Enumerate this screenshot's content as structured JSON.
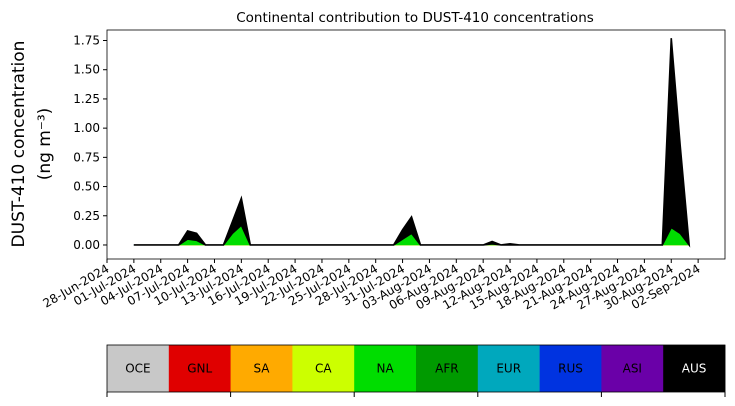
{
  "chart_data": {
    "type": "area",
    "title": "Continental contribution to DUST-410 concentrations",
    "ylabel_lines": [
      "DUST-410 concentration",
      "(ng m⁻³)"
    ],
    "x": [
      "2024-07-01",
      "2024-07-06",
      "2024-07-07",
      "2024-07-08",
      "2024-07-09",
      "2024-07-11",
      "2024-07-12",
      "2024-07-13",
      "2024-07-14",
      "2024-07-30",
      "2024-07-31",
      "2024-08-01",
      "2024-08-02",
      "2024-08-09",
      "2024-08-10",
      "2024-08-11",
      "2024-08-12",
      "2024-08-13",
      "2024-08-29",
      "2024-08-30",
      "2024-08-31",
      "2024-09-01"
    ],
    "series": [
      {
        "name": "OCE",
        "color": "#c8c8c8",
        "values": [
          0,
          0,
          0,
          0,
          0,
          0,
          0,
          0,
          0,
          0,
          0,
          0,
          0,
          0,
          0,
          0,
          0,
          0,
          0,
          0,
          0,
          0
        ]
      },
      {
        "name": "GNL",
        "color": "#e00000",
        "values": [
          0,
          0,
          0,
          0,
          0,
          0,
          0,
          0,
          0,
          0,
          0,
          0,
          0,
          0,
          0,
          0,
          0,
          0,
          0,
          0,
          0,
          0
        ]
      },
      {
        "name": "SA",
        "color": "#ffaa00",
        "values": [
          0,
          0,
          0,
          0,
          0,
          0,
          0,
          0,
          0,
          0,
          0,
          0,
          0,
          0,
          0,
          0,
          0,
          0,
          0,
          0,
          0,
          0
        ]
      },
      {
        "name": "CA",
        "color": "#ccff00",
        "values": [
          0,
          0,
          0,
          0,
          0,
          0,
          0,
          0,
          0,
          0,
          0,
          0,
          0,
          0,
          0,
          0,
          0,
          0,
          0,
          0,
          0,
          0
        ]
      },
      {
        "name": "NA",
        "color": "#00dd00",
        "values": [
          0,
          0,
          0.05,
          0.04,
          0,
          0,
          0.1,
          0.17,
          0,
          0,
          0.05,
          0.1,
          0,
          0,
          0.01,
          0,
          0,
          0,
          0,
          0.15,
          0.1,
          0
        ]
      },
      {
        "name": "AFR",
        "color": "#009a00",
        "values": [
          0,
          0,
          0,
          0,
          0,
          0,
          0,
          0,
          0,
          0,
          0,
          0,
          0,
          0,
          0,
          0,
          0,
          0,
          0,
          0,
          0,
          0
        ]
      },
      {
        "name": "EUR",
        "color": "#00a8bd",
        "values": [
          0,
          0,
          0,
          0,
          0,
          0,
          0,
          0,
          0,
          0,
          0,
          0,
          0,
          0,
          0,
          0,
          0,
          0,
          0,
          0,
          0,
          0
        ]
      },
      {
        "name": "RUS",
        "color": "#0033e0",
        "values": [
          0,
          0,
          0,
          0,
          0,
          0,
          0,
          0,
          0,
          0,
          0,
          0,
          0,
          0,
          0,
          0,
          0,
          0,
          0,
          0,
          0,
          0
        ]
      },
      {
        "name": "ASI",
        "color": "#6a00a8",
        "values": [
          0,
          0,
          0,
          0,
          0,
          0,
          0,
          0,
          0,
          0,
          0,
          0,
          0,
          0,
          0,
          0,
          0,
          0,
          0,
          0,
          0,
          0
        ]
      },
      {
        "name": "AUS",
        "color": "#000000",
        "values": [
          0,
          0,
          0.07,
          0.06,
          0,
          0,
          0.1,
          0.23,
          0,
          0,
          0.08,
          0.14,
          0,
          0,
          0.02,
          0,
          0.01,
          0,
          0,
          1.62,
          0.75,
          0
        ]
      }
    ],
    "xlim": [
      "2024-06-28",
      "2024-09-05"
    ],
    "xticks": [
      {
        "value": "2024-06-28",
        "label": "28-Jun-2024"
      },
      {
        "value": "2024-07-01",
        "label": "01-Jul-2024"
      },
      {
        "value": "2024-07-04",
        "label": "04-Jul-2024"
      },
      {
        "value": "2024-07-07",
        "label": "07-Jul-2024"
      },
      {
        "value": "2024-07-10",
        "label": "10-Jul-2024"
      },
      {
        "value": "2024-07-13",
        "label": "13-Jul-2024"
      },
      {
        "value": "2024-07-16",
        "label": "16-Jul-2024"
      },
      {
        "value": "2024-07-19",
        "label": "19-Jul-2024"
      },
      {
        "value": "2024-07-22",
        "label": "22-Jul-2024"
      },
      {
        "value": "2024-07-25",
        "label": "25-Jul-2024"
      },
      {
        "value": "2024-07-28",
        "label": "28-Jul-2024"
      },
      {
        "value": "2024-07-31",
        "label": "31-Jul-2024"
      },
      {
        "value": "2024-08-03",
        "label": "03-Aug-2024"
      },
      {
        "value": "2024-08-06",
        "label": "06-Aug-2024"
      },
      {
        "value": "2024-08-09",
        "label": "09-Aug-2024"
      },
      {
        "value": "2024-08-12",
        "label": "12-Aug-2024"
      },
      {
        "value": "2024-08-15",
        "label": "15-Aug-2024"
      },
      {
        "value": "2024-08-18",
        "label": "18-Aug-2024"
      },
      {
        "value": "2024-08-21",
        "label": "21-Aug-2024"
      },
      {
        "value": "2024-08-24",
        "label": "24-Aug-2024"
      },
      {
        "value": "2024-08-27",
        "label": "27-Aug-2024"
      },
      {
        "value": "2024-08-30",
        "label": "30-Aug-2024"
      },
      {
        "value": "2024-09-02",
        "label": "02-Sep-2024"
      }
    ],
    "ylim": [
      -0.12,
      1.84
    ],
    "yticks": [
      {
        "value": 0,
        "label": "0.00"
      },
      {
        "value": 0.25,
        "label": "0.25"
      },
      {
        "value": 0.5,
        "label": "0.50"
      },
      {
        "value": 0.75,
        "label": "0.75"
      },
      {
        "value": 1,
        "label": "1.00"
      },
      {
        "value": 1.25,
        "label": "1.25"
      },
      {
        "value": 1.5,
        "label": "1.50"
      },
      {
        "value": 1.75,
        "label": "1.75"
      }
    ]
  }
}
